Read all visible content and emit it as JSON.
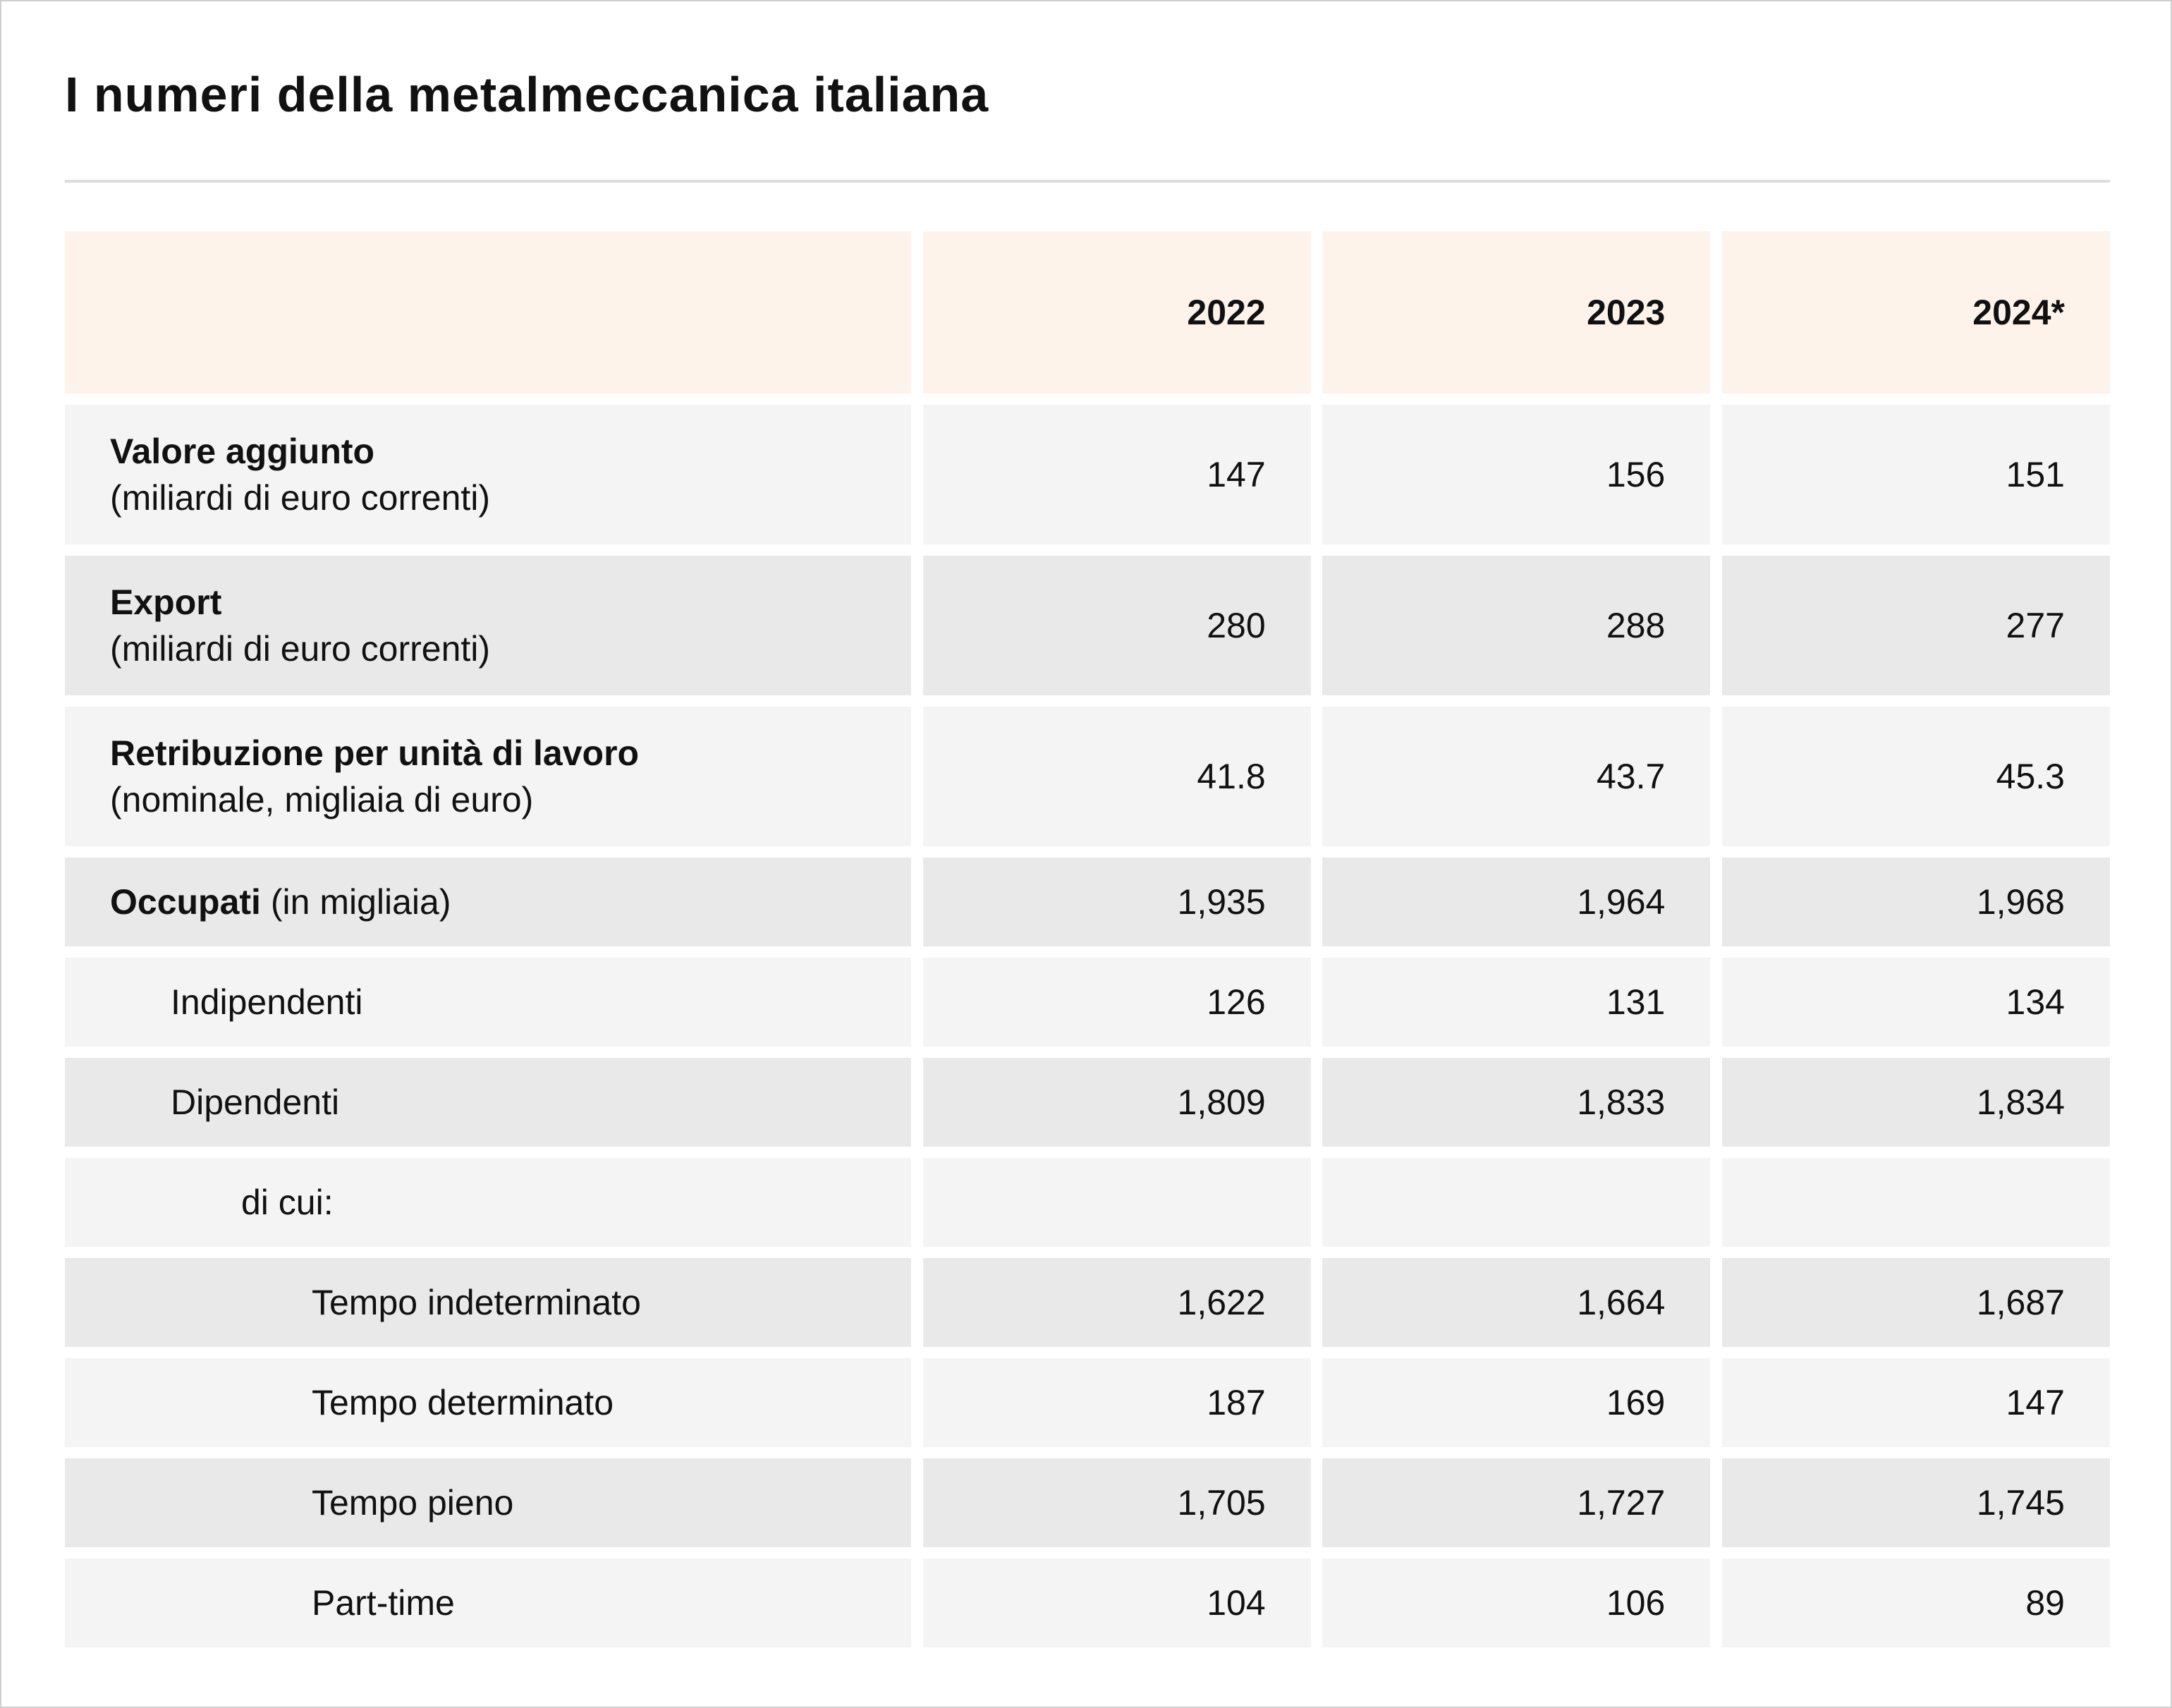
{
  "title": "I numeri della metalmeccanica italiana",
  "chart_data": {
    "type": "table",
    "title": "I numeri della metalmeccanica italiana",
    "columns": [
      "2022",
      "2023",
      "2024*"
    ],
    "rows": [
      {
        "label": "Valore aggiunto",
        "sublabel": "(miliardi di euro correnti)",
        "values": [
          "147",
          "156",
          "151"
        ]
      },
      {
        "label": "Export",
        "sublabel": "(miliardi di euro correnti)",
        "values": [
          "280",
          "288",
          "277"
        ]
      },
      {
        "label": "Retribuzione per unità di lavoro",
        "sublabel": "(nominale, migliaia di euro)",
        "values": [
          "41.8",
          "43.7",
          "45.3"
        ]
      },
      {
        "label": "Occupati",
        "sublabel": "(in migliaia)",
        "values": [
          "1,935",
          "1,964",
          "1,968"
        ]
      },
      {
        "label": "Indipendenti",
        "values": [
          "126",
          "131",
          "134"
        ]
      },
      {
        "label": "Dipendenti",
        "values": [
          "1,809",
          "1,833",
          "1,834"
        ]
      },
      {
        "label": "di cui:",
        "values": [
          "",
          "",
          ""
        ]
      },
      {
        "label": "Tempo indeterminato",
        "values": [
          "1,622",
          "1,664",
          "1,687"
        ]
      },
      {
        "label": "Tempo determinato",
        "values": [
          "187",
          "169",
          "147"
        ]
      },
      {
        "label": "Tempo pieno",
        "values": [
          "1,705",
          "1,727",
          "1,745"
        ]
      },
      {
        "label": "Part-time",
        "values": [
          "104",
          "106",
          "89"
        ]
      }
    ]
  }
}
